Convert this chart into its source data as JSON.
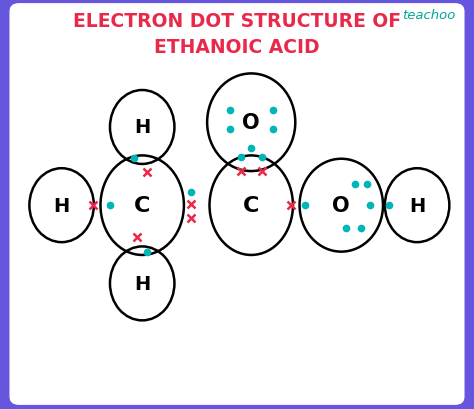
{
  "title_line1": "ELECTRON DOT STRUCTURE OF",
  "title_line2": "ETHANOIC ACID",
  "title_color": "#e8294a",
  "title_fontsize": 13.5,
  "bg_color": "#ffffff",
  "bg_inner": "#f0f0ff",
  "border_color": "#6655dd",
  "border_width": 10,
  "teachoo_color": "#00a896",
  "teachoo_text": "teachoo",
  "dot_color": "#00b5b8",
  "cross_color": "#e8294a"
}
